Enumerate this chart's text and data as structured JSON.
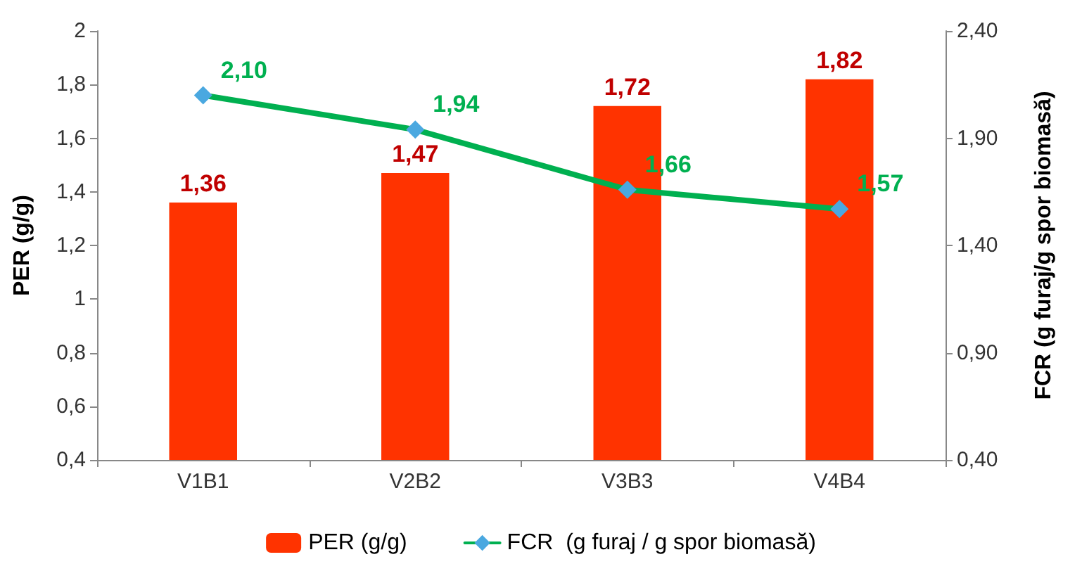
{
  "chart_data": {
    "type": "bar",
    "ylabel": "PER (g/g)",
    "y2label": "FCR (g furaj/g spor biomasă)",
    "categories": [
      "V1B1",
      "V2B2",
      "V3B3",
      "V4B4"
    ],
    "series": [
      {
        "name": "PER (g/g)",
        "color": "#ff3300",
        "values": [
          1.36,
          1.47,
          1.72,
          1.82
        ],
        "value_labels": [
          "1,36",
          "1,47",
          "1,72",
          "1,82"
        ]
      },
      {
        "name": "FCR  (g furaj / g spor biomasă)",
        "type": "line",
        "axis": "y2",
        "color": "#00b050",
        "colors": [
          "#4aa8e0",
          "#4aa8e0",
          "#4aa8e0",
          "#4aa8e0"
        ],
        "marker": "diamond",
        "values": [
          2.1,
          1.94,
          1.66,
          1.57
        ],
        "value_labels": [
          "2,10",
          "1,94",
          "1,66",
          "1,57"
        ]
      }
    ],
    "ylim": [
      0.4,
      2
    ],
    "yticks": [
      {
        "value": 0.4,
        "label": "0,4"
      },
      {
        "value": 0.6,
        "label": "0,6"
      },
      {
        "value": 0.8,
        "label": "0,8"
      },
      1,
      {
        "value": 1.2,
        "label": "1,2"
      },
      {
        "value": 1.4,
        "label": "1,4"
      },
      {
        "value": 1.6,
        "label": "1,6"
      },
      {
        "value": 1.8,
        "label": "1,8"
      },
      2
    ],
    "y2lim": [
      0.4,
      2.4
    ],
    "y2ticks": [
      {
        "value": 0.4,
        "label": "0,40"
      },
      {
        "value": 0.9,
        "label": "0,90"
      },
      {
        "value": 1.4,
        "label": "1,40"
      },
      {
        "value": 1.9,
        "label": "1,90"
      },
      {
        "value": 2.4,
        "label": "2,40"
      }
    ],
    "grid": false,
    "legend": "bottom"
  }
}
